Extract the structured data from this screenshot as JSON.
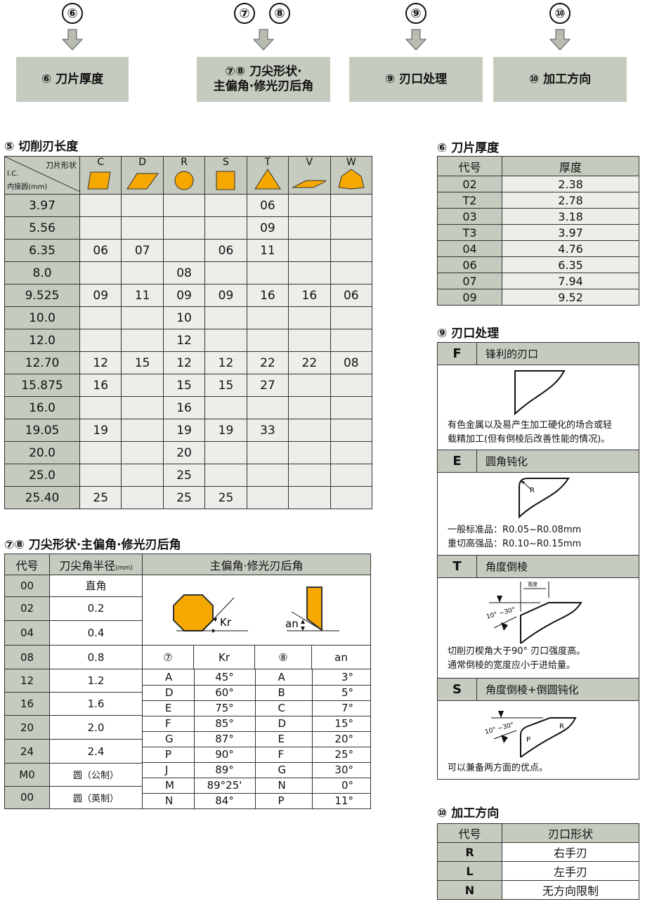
{
  "top": {
    "markers": [
      "⑥",
      "⑦",
      "⑧",
      "⑨",
      "⑩"
    ],
    "boxes": [
      "⑥ 刀片厚度",
      "⑦⑧ 刀尖形状·",
      "主偏角·修光刃后角",
      "⑨ 刃口处理",
      "⑩ 加工方向"
    ]
  },
  "colors": {
    "header": "#c5cbbf",
    "cell": "#eceeea",
    "shape": "#f5a800"
  },
  "t5": {
    "title": "⑤ 切削刃长度",
    "corner_top": "刀片形状",
    "corner_ic": "I.C.",
    "corner_bottom": "内接圆(mm)",
    "shapes": [
      "C",
      "D",
      "R",
      "S",
      "T",
      "V",
      "W"
    ],
    "rows": [
      [
        "3.97",
        "",
        "",
        "",
        "",
        "06",
        "",
        ""
      ],
      [
        "5.56",
        "",
        "",
        "",
        "",
        "09",
        "",
        ""
      ],
      [
        "6.35",
        "06",
        "07",
        "",
        "06",
        "11",
        "",
        ""
      ],
      [
        "8.0",
        "",
        "",
        "08",
        "",
        "",
        "",
        ""
      ],
      [
        "9.525",
        "09",
        "11",
        "09",
        "09",
        "16",
        "16",
        "06"
      ],
      [
        "10.0",
        "",
        "",
        "10",
        "",
        "",
        "",
        ""
      ],
      [
        "12.0",
        "",
        "",
        "12",
        "",
        "",
        "",
        ""
      ],
      [
        "12.70",
        "12",
        "15",
        "12",
        "12",
        "22",
        "22",
        "08"
      ],
      [
        "15.875",
        "16",
        "",
        "15",
        "15",
        "27",
        "",
        ""
      ],
      [
        "16.0",
        "",
        "",
        "16",
        "",
        "",
        "",
        ""
      ],
      [
        "19.05",
        "19",
        "",
        "19",
        "19",
        "33",
        "",
        ""
      ],
      [
        "20.0",
        "",
        "",
        "20",
        "",
        "",
        "",
        ""
      ],
      [
        "25.0",
        "",
        "",
        "25",
        "",
        "",
        "",
        ""
      ],
      [
        "25.40",
        "25",
        "",
        "25",
        "25",
        "",
        "",
        ""
      ]
    ]
  },
  "t6": {
    "title": "⑥ 刀片厚度",
    "headers": [
      "代号",
      "厚度"
    ],
    "rows": [
      [
        "02",
        "2.38"
      ],
      [
        "T2",
        "2.78"
      ],
      [
        "03",
        "3.18"
      ],
      [
        "T3",
        "3.97"
      ],
      [
        "04",
        "4.76"
      ],
      [
        "06",
        "6.35"
      ],
      [
        "07",
        "7.94"
      ],
      [
        "09",
        "9.52"
      ]
    ]
  },
  "t78": {
    "title": "⑦⑧ 刀尖形状·主偏角·修光刃后角",
    "h_code": "代号",
    "h_radius": "刀尖角半径",
    "h_unit": "(mm)",
    "h_angle": "主偏角·修光刃后角",
    "kr_label": "Kr",
    "an_label": "an",
    "rows": [
      [
        "00",
        "直角"
      ],
      [
        "02",
        "0.2"
      ],
      [
        "04",
        "0.4"
      ],
      [
        "08",
        "0.8"
      ],
      [
        "12",
        "1.2"
      ],
      [
        "16",
        "1.6"
      ],
      [
        "20",
        "2.0"
      ],
      [
        "24",
        "2.4"
      ],
      [
        "M0",
        "圆（公制）"
      ],
      [
        "00",
        "圆（英制）"
      ]
    ],
    "sub_headers": [
      "⑦",
      "Kr",
      "⑧",
      "an"
    ],
    "angles": [
      [
        "A",
        "45°",
        "A",
        "3°"
      ],
      [
        "D",
        "60°",
        "B",
        "5°"
      ],
      [
        "E",
        "75°",
        "C",
        "7°"
      ],
      [
        "F",
        "85°",
        "D",
        "15°"
      ],
      [
        "G",
        "87°",
        "E",
        "20°"
      ],
      [
        "P",
        "90°",
        "F",
        "25°"
      ],
      [
        "J",
        "89°",
        "G",
        "30°"
      ],
      [
        "M",
        "89°25'",
        "N",
        "0°"
      ],
      [
        "N",
        "84°",
        "P",
        "11°"
      ]
    ]
  },
  "t9": {
    "title": "⑨ 刃口处理",
    "sections": [
      {
        "code": "F",
        "name": "锋利的刃口",
        "notes": [
          "有色金属以及易产生加工硬化的场合或轻",
          "载精加工(但有倒棱后改善性能的情况)。"
        ]
      },
      {
        "code": "E",
        "name": "圆角钝化",
        "notes": [
          "一般标准品：R0.05~R0.08mm",
          "重切高强品：R0.10~R0.15mm"
        ],
        "label": "R"
      },
      {
        "code": "T",
        "name": "角度倒棱",
        "notes": [
          "切削刃楔角大于90° 刃口强度高。",
          "通常倒棱的宽度应小于进给量。"
        ],
        "width_label": "宽度",
        "angle_label": "10° ~30°"
      },
      {
        "code": "S",
        "name": "角度倒棱+倒圆钝化",
        "notes": [
          "可以兼备两方面的优点。"
        ],
        "angle_label": "10° ~30°",
        "r_label": "R",
        "p_label": "P"
      }
    ]
  },
  "t10": {
    "title": "⑩ 加工方向",
    "headers": [
      "代号",
      "刃口形状"
    ],
    "rows": [
      [
        "R",
        "右手刃"
      ],
      [
        "L",
        "左手刃"
      ],
      [
        "N",
        "无方向限制"
      ]
    ]
  }
}
